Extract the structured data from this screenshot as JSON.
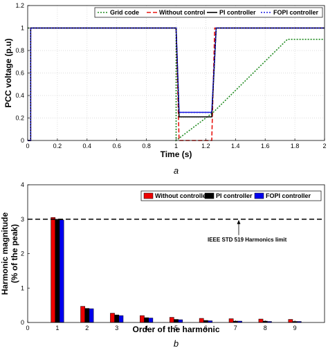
{
  "chart_data": [
    {
      "type": "line",
      "caption": "a",
      "xlabel": "Time (s)",
      "ylabel": "PCC voltage (p.u)",
      "xlim": [
        0,
        2
      ],
      "ylim": [
        0,
        1.2
      ],
      "xticks": [
        "0",
        "0.2",
        "0.4",
        "0.6",
        "0.8",
        "1",
        "1.2",
        "1.4",
        "1.6",
        "1.8",
        "2"
      ],
      "xtick_values": [
        0,
        0.2,
        0.4,
        0.6,
        0.8,
        1,
        1.2,
        1.4,
        1.6,
        1.8,
        2
      ],
      "yticks": [
        "0",
        "0.2",
        "0.4",
        "0.6",
        "0.8",
        "1",
        "1.2"
      ],
      "ytick_values": [
        0,
        0.2,
        0.4,
        0.6,
        0.8,
        1,
        1.2
      ],
      "grid": true,
      "legend": "top",
      "series": [
        {
          "name": "Grid code",
          "color": "#1e8a1e",
          "style": "dotted",
          "x": [
            0,
            1.0,
            1.0,
            1.25,
            1.75,
            2.0
          ],
          "y": [
            1.0,
            1.0,
            0.0,
            0.25,
            0.9,
            0.9
          ]
        },
        {
          "name": "Without control",
          "color": "#e8130f",
          "style": "dashed",
          "x": [
            0,
            0.02,
            0.02,
            1.0,
            1.02,
            1.24,
            1.26,
            2.0
          ],
          "y": [
            0,
            0,
            1.0,
            1.0,
            0.0,
            0.0,
            1.0,
            1.0
          ]
        },
        {
          "name": "PI controller",
          "color": "#000000",
          "style": "solid",
          "x": [
            0,
            0.02,
            0.02,
            1.0,
            1.02,
            1.24,
            1.27,
            2.0
          ],
          "y": [
            0,
            0,
            1.0,
            1.0,
            0.21,
            0.21,
            1.0,
            1.0
          ]
        },
        {
          "name": "FOPI controller",
          "color": "#1a1ae0",
          "style": "dotted",
          "x": [
            0,
            0.02,
            0.02,
            1.0,
            1.02,
            1.24,
            1.27,
            2.0
          ],
          "y": [
            0,
            0,
            1.0,
            1.0,
            0.25,
            0.25,
            1.0,
            1.0
          ]
        },
        {
          "name": "",
          "color": "#1a1ae0",
          "style": "solid",
          "x": [
            0,
            0.02,
            0.02,
            1.0,
            1.02,
            1.24,
            1.27,
            2.0
          ],
          "y": [
            0,
            0,
            1.0,
            1.0,
            0.25,
            0.25,
            1.0,
            1.0
          ]
        }
      ]
    },
    {
      "type": "bar",
      "caption": "b",
      "xlabel": "Order of the harmonic",
      "ylabel": "Harmonic magnitude",
      "ylabel2": "(% of the peak)",
      "xlim": [
        0,
        10
      ],
      "ylim": [
        0,
        4
      ],
      "xticks": [
        "0",
        "1",
        "2",
        "3",
        "4",
        "5",
        "6",
        "7",
        "8",
        "9"
      ],
      "xtick_values": [
        0,
        1,
        2,
        3,
        4,
        5,
        6,
        7,
        8,
        9
      ],
      "yticks": [
        "0",
        "1",
        "2",
        "3",
        "4"
      ],
      "ytick_values": [
        0,
        1,
        2,
        3,
        4
      ],
      "grid": false,
      "legend": "top-right",
      "categories": [
        "1",
        "2",
        "3",
        "4",
        "5",
        "6",
        "7",
        "8",
        "9"
      ],
      "series": [
        {
          "name": "Without controller",
          "color": "#ee0000",
          "values": [
            3.05,
            0.47,
            0.27,
            0.2,
            0.15,
            0.12,
            0.11,
            0.1,
            0.09
          ]
        },
        {
          "name": "PI controller",
          "color": "#000000",
          "values": [
            3.0,
            0.41,
            0.22,
            0.14,
            0.09,
            0.06,
            0.04,
            0.04,
            0.03
          ]
        },
        {
          "name": "FOPI controller",
          "color": "#0000ee",
          "values": [
            2.98,
            0.4,
            0.2,
            0.13,
            0.08,
            0.05,
            0.04,
            0.03,
            0.03
          ]
        }
      ],
      "reference_line": {
        "value": 3,
        "label": "IEEE STD 519 Harmonics limit"
      }
    }
  ]
}
